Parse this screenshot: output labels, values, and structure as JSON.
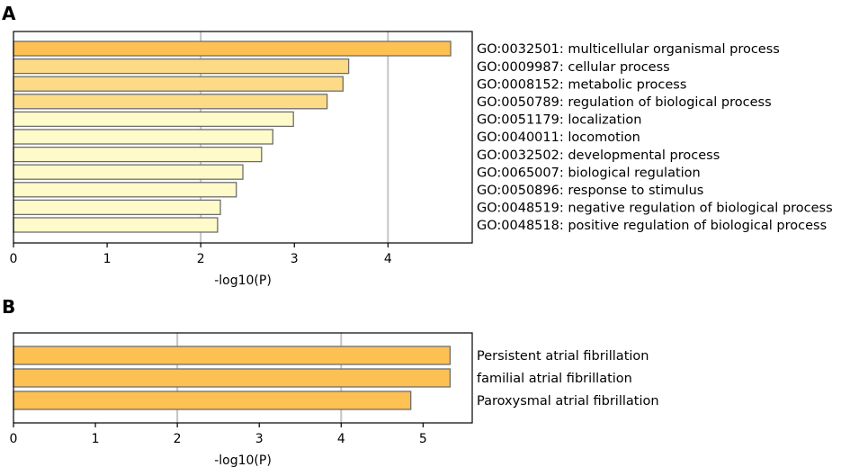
{
  "chart_data": [
    {
      "type": "bar",
      "orientation": "horizontal",
      "panel_label": "A",
      "xlabel": "-log10(P)",
      "xlim": [
        0,
        4.9
      ],
      "xticks": [
        "0",
        "1",
        "2",
        "3",
        "4"
      ],
      "grid_x": [
        2,
        4
      ],
      "categories": [
        "GO:0032501: multicellular organismal process",
        "GO:0009987: cellular process",
        "GO:0008152: metabolic process",
        "GO:0050789: regulation of biological process",
        "GO:0051179: localization",
        "GO:0040011: locomotion",
        "GO:0032502: developmental process",
        "GO:0065007: biological regulation",
        "GO:0050896: response to stimulus",
        "GO:0048519: negative regulation of biological process",
        "GO:0048518: positive regulation of biological process"
      ],
      "values": [
        4.67,
        3.58,
        3.52,
        3.35,
        2.99,
        2.77,
        2.65,
        2.45,
        2.38,
        2.21,
        2.18
      ],
      "colors": [
        "#fdc053",
        "#fddb86",
        "#fddb86",
        "#fddb86",
        "#fefac9",
        "#fefac9",
        "#fefac9",
        "#fefac9",
        "#fefac9",
        "#fefac9",
        "#fefac9"
      ]
    },
    {
      "type": "bar",
      "orientation": "horizontal",
      "panel_label": "B",
      "xlabel": "-log10(P)",
      "xlim": [
        0,
        5.6
      ],
      "xticks": [
        "0",
        "1",
        "2",
        "3",
        "4",
        "5"
      ],
      "grid_x": [
        2,
        4
      ],
      "categories": [
        "Persistent atrial fibrillation",
        "familial atrial fibrillation",
        "Paroxysmal atrial fibrillation"
      ],
      "values": [
        5.33,
        5.33,
        4.85
      ],
      "colors": [
        "#fdc053",
        "#fdc053",
        "#fdc053"
      ]
    }
  ]
}
